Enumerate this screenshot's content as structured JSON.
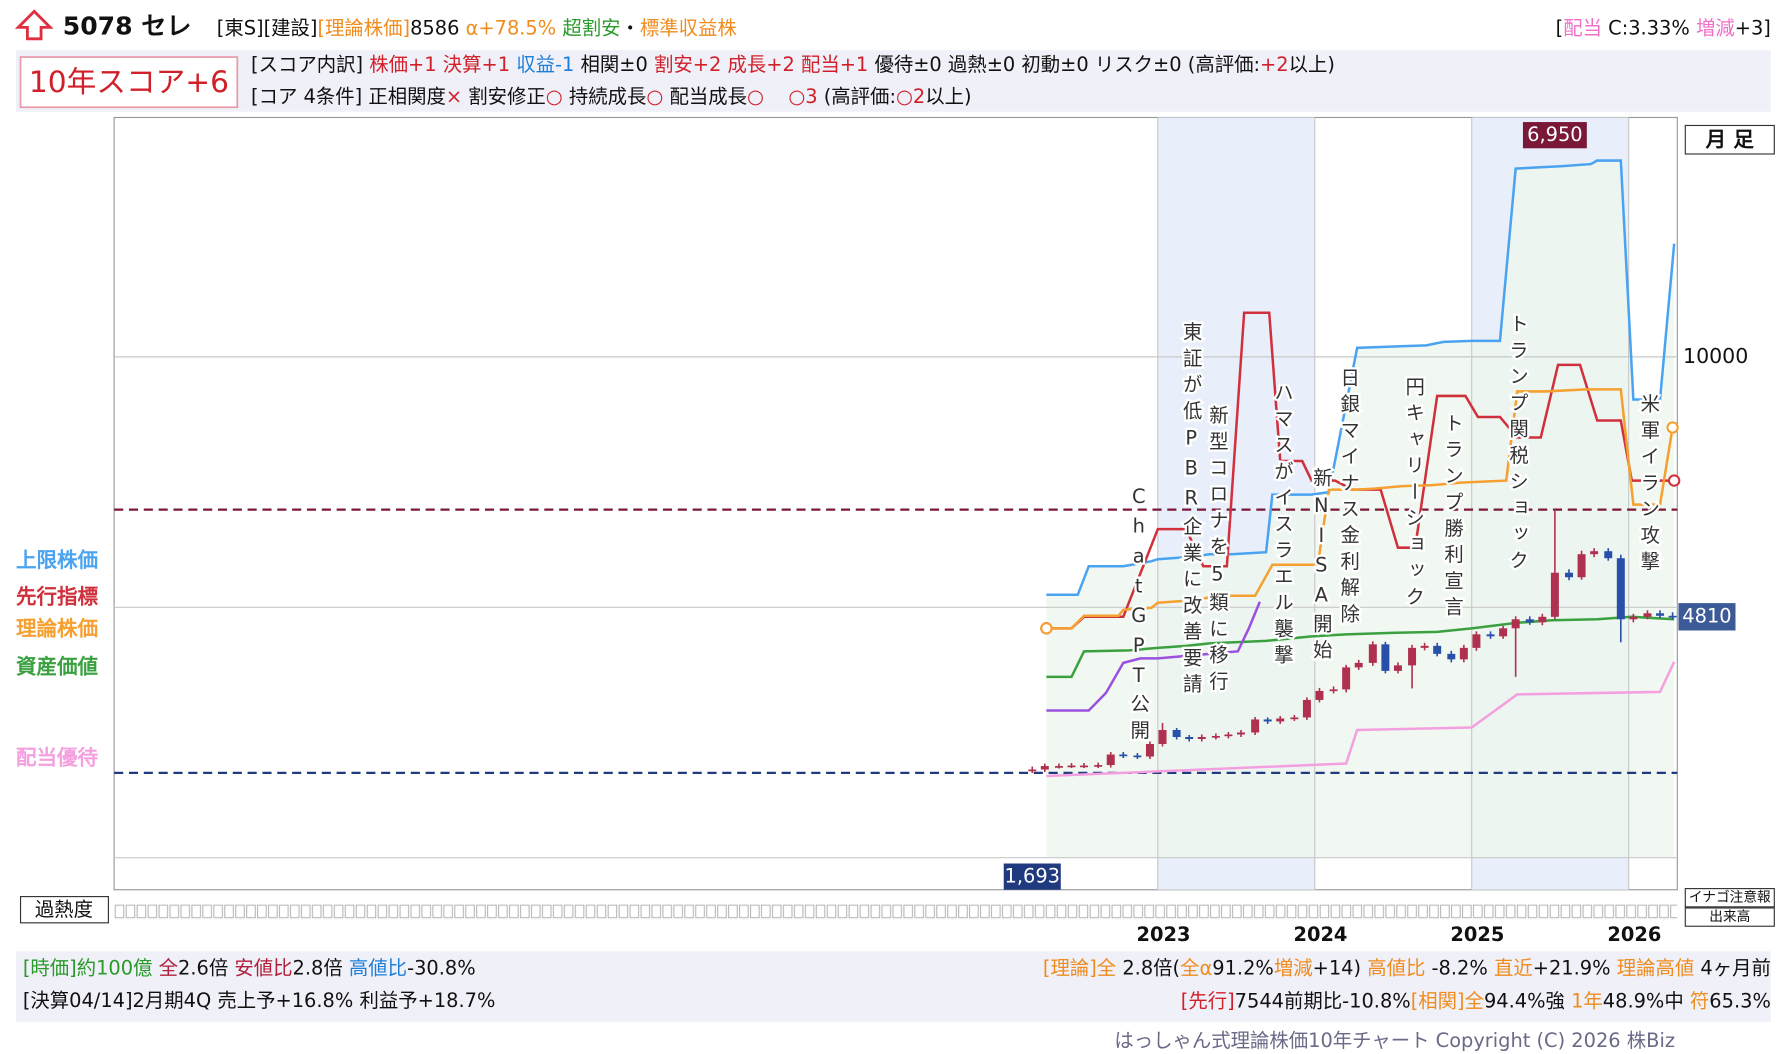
{
  "header": {
    "title": "5078 セレ",
    "line1": [
      "[東S][建設]",
      "[理論株価]",
      "8586",
      "α+78.5%",
      "超割安",
      "・",
      "標準収益株"
    ],
    "dividend": [
      "[",
      "配当",
      "C:3.33%",
      "増減",
      "+3]"
    ],
    "score": "10年スコア+6",
    "breakdown": [
      "[スコア内訳]",
      "株価+1",
      "決算+1",
      "収益-1",
      "相関±0",
      "割安+2",
      "成長+2",
      "配当+1",
      "優待±0",
      "過熱±0",
      "初動±0",
      "リスク±0",
      "(高評価:",
      "+2",
      "以上)"
    ],
    "core": [
      "[コア 4条件]",
      "正相関度",
      "×",
      "割安修正",
      "○",
      "持続成長",
      "○",
      "配当成長",
      "○",
      "○3",
      "(高評価:",
      "○2",
      "以上)"
    ]
  },
  "chart_data": {
    "type": "candlestick",
    "period": "月 足",
    "xlim": [
      2016.35,
      2026.31
    ],
    "xticks": [
      2023,
      2024,
      2025,
      2026
    ],
    "ylim": [
      -640,
      14780
    ],
    "yticks": [
      10000
    ],
    "grid_lines": [
      0,
      5000,
      10000
    ],
    "high_mark": {
      "value": 6950,
      "label": "6,950"
    },
    "low_mark": {
      "value": 1693,
      "label": "1,693"
    },
    "last_price": 4810,
    "candles": {
      "up_color": "#b03050",
      "down_color": "#2850a8",
      "x": [
        2022.2,
        2022.28,
        2022.37,
        2022.45,
        2022.53,
        2022.62,
        2022.7,
        2022.78,
        2022.87,
        2022.95,
        2023.03,
        2023.12,
        2023.2,
        2023.28,
        2023.37,
        2023.45,
        2023.53,
        2023.62,
        2023.7,
        2023.78,
        2023.87,
        2023.95,
        2024.03,
        2024.12,
        2024.2,
        2024.28,
        2024.37,
        2024.45,
        2024.53,
        2024.62,
        2024.7,
        2024.78,
        2024.87,
        2024.95,
        2025.03,
        2025.12,
        2025.2,
        2025.28,
        2025.37,
        2025.45,
        2025.53,
        2025.62,
        2025.7,
        2025.78,
        2025.87,
        2025.95,
        2026.03,
        2026.12,
        2026.2,
        2026.28
      ],
      "open": [
        1740,
        1760,
        1830,
        1830,
        1840,
        1840,
        1850,
        2060,
        2040,
        2020,
        2270,
        2550,
        2410,
        2370,
        2410,
        2430,
        2460,
        2500,
        2760,
        2720,
        2780,
        2800,
        3150,
        3330,
        3360,
        3800,
        3890,
        4260,
        3730,
        3840,
        4190,
        4230,
        4070,
        3960,
        4190,
        4460,
        4420,
        4580,
        4760,
        4700,
        4810,
        5690,
        5600,
        6060,
        6120,
        5980,
        4760,
        4810,
        4880,
        4830
      ],
      "high": [
        1820,
        1880,
        1880,
        1890,
        1890,
        1900,
        2110,
        2110,
        2090,
        2320,
        2690,
        2590,
        2450,
        2460,
        2480,
        2510,
        2550,
        2810,
        2800,
        2830,
        2850,
        3200,
        3390,
        3420,
        3850,
        3950,
        4320,
        4310,
        3900,
        4250,
        4290,
        4290,
        4130,
        4250,
        4520,
        4520,
        4630,
        4820,
        4820,
        4870,
        6950,
        5760,
        6130,
        6180,
        6180,
        6050,
        4870,
        4940,
        4940,
        4900
      ],
      "low": [
        1693,
        1710,
        1780,
        1790,
        1790,
        1790,
        1800,
        1990,
        1970,
        1970,
        2220,
        2360,
        2320,
        2320,
        2360,
        2380,
        2410,
        2450,
        2670,
        2670,
        2730,
        2750,
        3100,
        3280,
        3300,
        3750,
        3830,
        3680,
        3680,
        3380,
        4140,
        4020,
        3900,
        3900,
        4130,
        4370,
        4370,
        3610,
        4650,
        4640,
        4760,
        5540,
        5550,
        6000,
        5930,
        4300,
        4700,
        4760,
        4780,
        4760
      ],
      "close": [
        1760,
        1830,
        1830,
        1840,
        1840,
        1850,
        2060,
        2040,
        2020,
        2270,
        2550,
        2410,
        2370,
        2410,
        2430,
        2460,
        2500,
        2760,
        2720,
        2780,
        2800,
        3150,
        3330,
        3360,
        3800,
        3890,
        4260,
        3730,
        3840,
        4190,
        4230,
        4070,
        3960,
        4190,
        4460,
        4420,
        4580,
        4760,
        4700,
        4810,
        5690,
        5600,
        6060,
        6120,
        5980,
        4760,
        4810,
        4880,
        4830,
        4810
      ]
    },
    "series": [
      {
        "name": "上限株価",
        "color": "#4aa3f0",
        "x": [
          2022.29,
          2022.49,
          2022.56,
          2022.78,
          2022.96,
          2023.0,
          2023.22,
          2023.33,
          2023.47,
          2023.69,
          2023.73,
          2023.98,
          2024.09,
          2024.27,
          2024.71,
          2024.82,
          2025.0,
          2025.18,
          2025.28,
          2025.58,
          2025.76,
          2025.8,
          2025.95,
          2026.03,
          2026.2,
          2026.29
        ],
        "values": [
          5250,
          5250,
          5820,
          5820,
          5920,
          5960,
          6010,
          6060,
          6060,
          6100,
          7250,
          7250,
          7300,
          10180,
          10230,
          10300,
          10320,
          10320,
          13760,
          13810,
          13850,
          13920,
          13920,
          9150,
          9150,
          12260
        ]
      },
      {
        "name": "先行指標",
        "color": "#d0303c",
        "end_markers": true,
        "x": [
          2022.29,
          2022.45,
          2022.53,
          2022.78,
          2023.0,
          2023.18,
          2023.29,
          2023.44,
          2023.55,
          2023.71,
          2023.78,
          2023.92,
          2023.98,
          2024.13,
          2024.24,
          2024.42,
          2024.53,
          2024.64,
          2024.78,
          2024.96,
          2025.04,
          2025.18,
          2025.29,
          2025.44,
          2025.55,
          2025.69,
          2025.8,
          2025.95,
          2026.02,
          2026.29
        ],
        "values": [
          4580,
          4580,
          4810,
          4810,
          6560,
          6560,
          5820,
          5820,
          10880,
          10880,
          7920,
          7920,
          7530,
          7530,
          7350,
          7350,
          6190,
          6190,
          9220,
          9220,
          8800,
          8800,
          8390,
          8390,
          9840,
          9840,
          8730,
          8730,
          7530,
          7530
        ]
      },
      {
        "name": "理論株価",
        "color": "#f5a030",
        "end_markers": true,
        "x": [
          2022.29,
          2022.45,
          2022.53,
          2022.75,
          2022.78,
          2022.96,
          2023.0,
          2023.18,
          2023.29,
          2023.47,
          2023.62,
          2023.73,
          2023.95,
          2024.02,
          2024.09,
          2024.27,
          2024.38,
          2024.56,
          2024.75,
          2024.93,
          2025.22,
          2025.29,
          2025.47,
          2025.73,
          2025.95,
          2026.03,
          2026.2,
          2026.28
        ],
        "values": [
          4580,
          4580,
          4830,
          4830,
          4950,
          4990,
          5090,
          5130,
          5180,
          5230,
          5230,
          5850,
          5850,
          5850,
          7350,
          7350,
          7370,
          7420,
          7440,
          7490,
          7530,
          9310,
          9310,
          9350,
          9350,
          7050,
          7050,
          8590
        ]
      },
      {
        "name": "資産価値",
        "color": "#3aa040",
        "x": [
          2022.29,
          2022.45,
          2022.53,
          2022.82,
          2023.0,
          2023.18,
          2023.33,
          2023.47,
          2023.69,
          2023.98,
          2024.2,
          2024.49,
          2024.78,
          2025.0,
          2025.29,
          2025.51,
          2025.8,
          2026.02,
          2026.29
        ],
        "values": [
          3610,
          3610,
          4120,
          4140,
          4190,
          4230,
          4280,
          4300,
          4330,
          4420,
          4460,
          4490,
          4510,
          4580,
          4690,
          4740,
          4760,
          4810,
          4760
        ]
      },
      {
        "color": "#9a50e0",
        "x": [
          2022.29,
          2022.56,
          2022.67,
          2022.78,
          2022.89,
          2023.0,
          2023.33,
          2023.51,
          2023.58,
          2023.65
        ],
        "values": [
          2940,
          2940,
          3290,
          3890,
          3980,
          3980,
          4070,
          4120,
          4580,
          5110
        ]
      },
      {
        "name": "配当優待",
        "color": "#f4a0e0",
        "x": [
          2022.29,
          2024.2,
          2024.27,
          2025.0,
          2025.29,
          2026.2,
          2026.29
        ],
        "values": [
          1630,
          1880,
          2550,
          2600,
          3260,
          3310,
          3910
        ]
      }
    ],
    "annotations": [
      "ChatGPT公開",
      "東証が低PBR企業に改善要請",
      "新型コロナを5類に移行",
      "ハマスがイスラエル襲撃",
      "新NISA開始",
      "日銀マイナス金利解除",
      "円キャリーショック",
      "トランプ勝利宣言",
      "トランプ関税ショック",
      "米軍イラン攻撃"
    ],
    "overheat_label": "過熱度",
    "inago_label": "イナゴ注意報",
    "volume_label": "出来高"
  },
  "footer": {
    "left1": [
      "[時価]約100億",
      "全",
      "2.6倍",
      "安値比",
      "2.8倍",
      "高値比",
      "-30.8%"
    ],
    "right1": [
      "[理論]全",
      "2.8倍(",
      "全α",
      "91.2%",
      "増減",
      "+14)",
      "高値比",
      "-8.2%",
      "直近",
      "+21.9%",
      "理論高値",
      "4ヶ月前"
    ],
    "left2": "[決算04/14]2月期4Q 売上予+16.8% 利益予+18.7%",
    "right2": [
      "[先行]",
      "7544前期比-10.8%",
      "[相関]全",
      "94.4%強",
      "1年",
      "48.9%中",
      "符",
      "65.3%"
    ],
    "copyright": "はっしゃん式理論株価10年チャート Copyright (C) 2026 株Biz"
  }
}
